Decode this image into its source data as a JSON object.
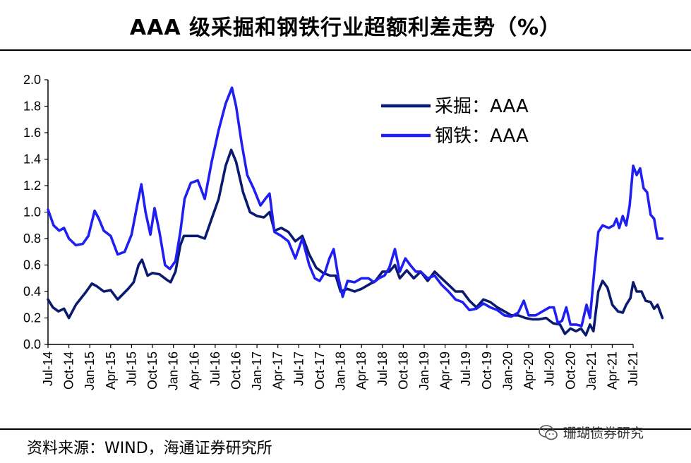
{
  "title": "AAA 级采掘和钢铁行业超额利差走势（%）",
  "source": "资料来源：WIND，海通证券研究所",
  "watermark": "珊瑚债券研究",
  "colors": {
    "mining": "#0a1a6e",
    "steel": "#1f1ff2"
  },
  "chart_data": {
    "type": "line",
    "title": "AAA 级采掘和钢铁行业超额利差走势（%）",
    "ylim": [
      0,
      2.0
    ],
    "yticks": [
      "0.0",
      "0.2",
      "0.4",
      "0.6",
      "0.8",
      "1.0",
      "1.2",
      "1.4",
      "1.6",
      "1.8",
      "2.0"
    ],
    "xlim_months": [
      0,
      85
    ],
    "xticks": [
      "Jul-14",
      "Oct-14",
      "Jan-15",
      "Apr-15",
      "Jul-15",
      "Oct-15",
      "Jan-16",
      "Apr-16",
      "Jul-16",
      "Oct-16",
      "Jan-17",
      "Apr-17",
      "Jul-17",
      "Oct-17",
      "Jan-18",
      "Apr-18",
      "Jul-18",
      "Oct-18",
      "Jan-19",
      "Apr-19",
      "Jul-19",
      "Oct-19",
      "Jan-20",
      "Apr-20",
      "Jul-20",
      "Oct-20",
      "Jan-21",
      "Apr-21",
      "Jul-21"
    ],
    "legend_position": "top-right",
    "series": [
      {
        "name": "采掘：AAA",
        "key": "mining",
        "points": [
          [
            0,
            0.34
          ],
          [
            0.7,
            0.28
          ],
          [
            1.5,
            0.25
          ],
          [
            2.3,
            0.27
          ],
          [
            3,
            0.2
          ],
          [
            4,
            0.3
          ],
          [
            5.5,
            0.4
          ],
          [
            6.3,
            0.46
          ],
          [
            7,
            0.44
          ],
          [
            8,
            0.4
          ],
          [
            9,
            0.41
          ],
          [
            10,
            0.34
          ],
          [
            11.5,
            0.42
          ],
          [
            12.3,
            0.47
          ],
          [
            13,
            0.6
          ],
          [
            13.5,
            0.64
          ],
          [
            14.3,
            0.52
          ],
          [
            15,
            0.54
          ],
          [
            16,
            0.53
          ],
          [
            17,
            0.49
          ],
          [
            17.6,
            0.47
          ],
          [
            18.3,
            0.55
          ],
          [
            19,
            0.75
          ],
          [
            19.5,
            0.82
          ],
          [
            20.5,
            0.82
          ],
          [
            21.5,
            0.82
          ],
          [
            22.5,
            0.8
          ],
          [
            23.5,
            0.95
          ],
          [
            24.5,
            1.1
          ],
          [
            25.5,
            1.35
          ],
          [
            26.3,
            1.47
          ],
          [
            27,
            1.38
          ],
          [
            28,
            1.15
          ],
          [
            29,
            1.0
          ],
          [
            30,
            0.97
          ],
          [
            31,
            0.96
          ],
          [
            31.8,
            1.0
          ],
          [
            32.5,
            0.86
          ],
          [
            33.5,
            0.88
          ],
          [
            34.5,
            0.85
          ],
          [
            35.5,
            0.78
          ],
          [
            36.5,
            0.82
          ],
          [
            37.5,
            0.68
          ],
          [
            38.5,
            0.58
          ],
          [
            39.5,
            0.54
          ],
          [
            40.5,
            0.52
          ],
          [
            41.3,
            0.52
          ],
          [
            42,
            0.4
          ],
          [
            43,
            0.42
          ],
          [
            44,
            0.4
          ],
          [
            45,
            0.42
          ],
          [
            46,
            0.45
          ],
          [
            47,
            0.48
          ],
          [
            48,
            0.55
          ],
          [
            49,
            0.55
          ],
          [
            49.8,
            0.6
          ],
          [
            50.5,
            0.5
          ],
          [
            51.5,
            0.56
          ],
          [
            52.5,
            0.5
          ],
          [
            53.5,
            0.55
          ],
          [
            54.5,
            0.48
          ],
          [
            55.5,
            0.55
          ],
          [
            56.5,
            0.5
          ],
          [
            57.5,
            0.45
          ],
          [
            58.5,
            0.4
          ],
          [
            59.5,
            0.4
          ],
          [
            60.5,
            0.33
          ],
          [
            61.5,
            0.28
          ],
          [
            62.5,
            0.34
          ],
          [
            63.5,
            0.32
          ],
          [
            64.5,
            0.28
          ],
          [
            65.5,
            0.25
          ],
          [
            66.5,
            0.22
          ],
          [
            67.5,
            0.22
          ],
          [
            68.5,
            0.2
          ],
          [
            69.5,
            0.19
          ],
          [
            70.5,
            0.19
          ],
          [
            71.5,
            0.2
          ],
          [
            72.5,
            0.16
          ],
          [
            73.5,
            0.15
          ],
          [
            74.2,
            0.08
          ],
          [
            75,
            0.12
          ],
          [
            75.8,
            0.1
          ],
          [
            76.5,
            0.12
          ],
          [
            77.2,
            0.07
          ],
          [
            77.8,
            0.15
          ],
          [
            78.3,
            0.1
          ],
          [
            79,
            0.4
          ],
          [
            79.6,
            0.48
          ],
          [
            80.3,
            0.43
          ],
          [
            81,
            0.3
          ],
          [
            81.8,
            0.25
          ],
          [
            82.5,
            0.24
          ],
          [
            83,
            0.3
          ],
          [
            83.6,
            0.35
          ],
          [
            84,
            0.47
          ],
          [
            84.5,
            0.4
          ],
          [
            85.2,
            0.4
          ],
          [
            85.8,
            0.33
          ],
          [
            86.5,
            0.32
          ],
          [
            87,
            0.27
          ],
          [
            87.5,
            0.3
          ],
          [
            88.2,
            0.2
          ]
        ]
      },
      {
        "name": "钢铁：AAA",
        "key": "steel",
        "points": [
          [
            0,
            1.02
          ],
          [
            0.8,
            0.9
          ],
          [
            1.6,
            0.86
          ],
          [
            2.3,
            0.88
          ],
          [
            3,
            0.8
          ],
          [
            4,
            0.75
          ],
          [
            5,
            0.76
          ],
          [
            5.8,
            0.82
          ],
          [
            6.7,
            1.01
          ],
          [
            7.3,
            0.95
          ],
          [
            8,
            0.86
          ],
          [
            9,
            0.82
          ],
          [
            10,
            0.68
          ],
          [
            11,
            0.7
          ],
          [
            12,
            0.83
          ],
          [
            12.8,
            1.05
          ],
          [
            13.4,
            1.21
          ],
          [
            14,
            1.0
          ],
          [
            14.7,
            0.83
          ],
          [
            15.3,
            1.03
          ],
          [
            16,
            0.85
          ],
          [
            16.8,
            0.6
          ],
          [
            17.5,
            0.57
          ],
          [
            18.3,
            0.63
          ],
          [
            19,
            0.85
          ],
          [
            19.6,
            1.1
          ],
          [
            20.5,
            1.22
          ],
          [
            21.5,
            1.24
          ],
          [
            22.5,
            1.1
          ],
          [
            23.5,
            1.38
          ],
          [
            24.5,
            1.62
          ],
          [
            25.5,
            1.82
          ],
          [
            26.4,
            1.94
          ],
          [
            27,
            1.8
          ],
          [
            27.8,
            1.52
          ],
          [
            28.6,
            1.28
          ],
          [
            29.5,
            1.18
          ],
          [
            30.5,
            1.05
          ],
          [
            31.2,
            1.1
          ],
          [
            31.8,
            1.14
          ],
          [
            32.5,
            0.85
          ],
          [
            33.5,
            0.82
          ],
          [
            34.5,
            0.78
          ],
          [
            35.5,
            0.65
          ],
          [
            36.5,
            0.8
          ],
          [
            37.5,
            0.6
          ],
          [
            38.3,
            0.5
          ],
          [
            39,
            0.48
          ],
          [
            39.8,
            0.55
          ],
          [
            40.4,
            0.65
          ],
          [
            41,
            0.72
          ],
          [
            41.7,
            0.5
          ],
          [
            42.3,
            0.36
          ],
          [
            43,
            0.48
          ],
          [
            44,
            0.47
          ],
          [
            45,
            0.5
          ],
          [
            46,
            0.5
          ],
          [
            46.8,
            0.47
          ],
          [
            47.5,
            0.5
          ],
          [
            48.3,
            0.52
          ],
          [
            49,
            0.58
          ],
          [
            49.8,
            0.72
          ],
          [
            50.5,
            0.55
          ],
          [
            51.3,
            0.65
          ],
          [
            52,
            0.6
          ],
          [
            52.8,
            0.55
          ],
          [
            53.5,
            0.55
          ],
          [
            54.5,
            0.5
          ],
          [
            55.5,
            0.52
          ],
          [
            56.5,
            0.45
          ],
          [
            57.5,
            0.4
          ],
          [
            58.5,
            0.34
          ],
          [
            59.5,
            0.32
          ],
          [
            60.5,
            0.26
          ],
          [
            61.5,
            0.27
          ],
          [
            62.5,
            0.31
          ],
          [
            63.5,
            0.28
          ],
          [
            64.5,
            0.26
          ],
          [
            65.5,
            0.22
          ],
          [
            66.5,
            0.21
          ],
          [
            67.5,
            0.24
          ],
          [
            68.3,
            0.33
          ],
          [
            69,
            0.22
          ],
          [
            70,
            0.22
          ],
          [
            71,
            0.25
          ],
          [
            72,
            0.28
          ],
          [
            72.6,
            0.28
          ],
          [
            73.2,
            0.16
          ],
          [
            73.8,
            0.18
          ],
          [
            74.4,
            0.28
          ],
          [
            75,
            0.15
          ],
          [
            75.8,
            0.15
          ],
          [
            76.6,
            0.14
          ],
          [
            77.3,
            0.3
          ],
          [
            77.8,
            0.2
          ],
          [
            78.5,
            0.6
          ],
          [
            79,
            0.85
          ],
          [
            79.6,
            0.9
          ],
          [
            80.5,
            0.88
          ],
          [
            81.2,
            0.9
          ],
          [
            81.6,
            0.95
          ],
          [
            82,
            0.88
          ],
          [
            82.5,
            0.97
          ],
          [
            83,
            0.9
          ],
          [
            83.5,
            1.05
          ],
          [
            84,
            1.35
          ],
          [
            84.5,
            1.28
          ],
          [
            85,
            1.33
          ],
          [
            85.5,
            1.18
          ],
          [
            86,
            1.15
          ],
          [
            86.5,
            0.98
          ],
          [
            87,
            0.95
          ],
          [
            87.5,
            0.8
          ],
          [
            88.2,
            0.8
          ]
        ]
      }
    ]
  }
}
